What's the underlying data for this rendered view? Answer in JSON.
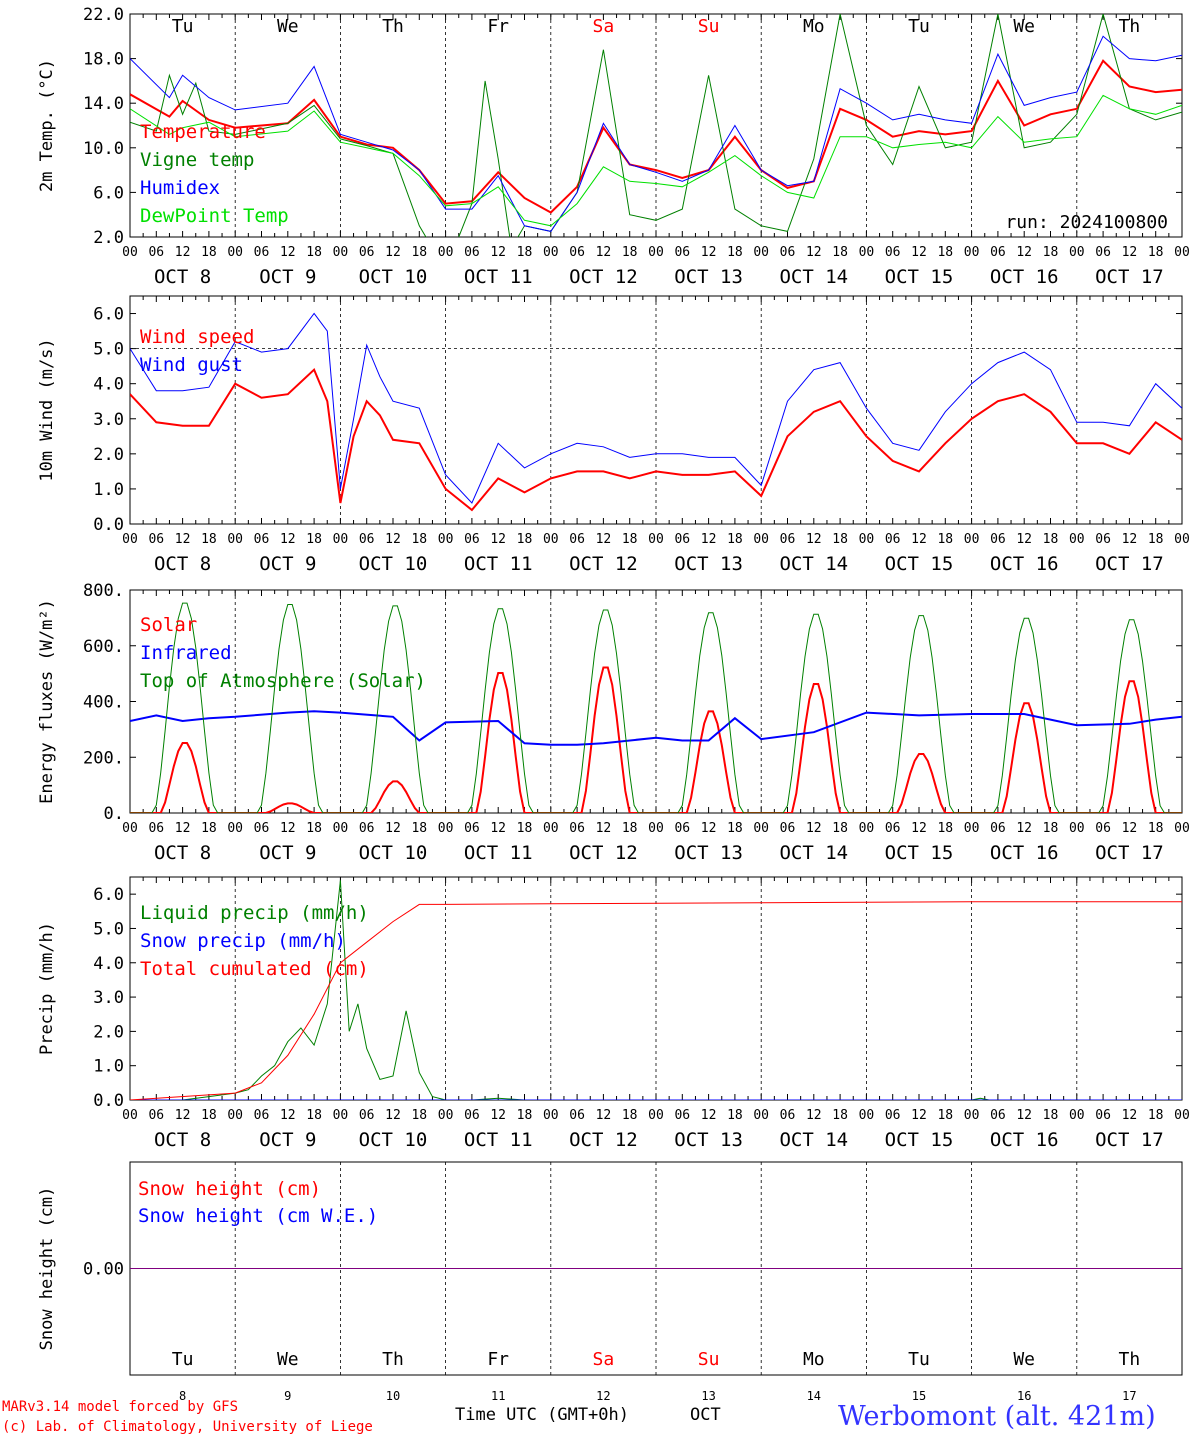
{
  "colors": {
    "red": "#ff0000",
    "green": "#008000",
    "blue": "#0000ff",
    "light_green": "#00e000",
    "black": "#000000",
    "purple": "#800080",
    "title_blue": "#3333ff"
  },
  "days": {
    "weekday": [
      "Tu",
      "We",
      "Th",
      "Fr",
      "Sa",
      "Su",
      "Mo",
      "Tu",
      "We",
      "Th"
    ],
    "weekend_flags": [
      false,
      false,
      false,
      false,
      true,
      true,
      false,
      false,
      false,
      false
    ],
    "date_labels": [
      "OCT  8",
      "OCT  9",
      "OCT 10",
      "OCT 11",
      "OCT 12",
      "OCT 13",
      "OCT 14",
      "OCT 15",
      "OCT 16",
      "OCT 17"
    ],
    "day_numbers": [
      "8",
      "9",
      "10",
      "11",
      "12",
      "13",
      "14",
      "15",
      "16",
      "17"
    ],
    "hour_ticks": [
      "00",
      "06",
      "12",
      "18"
    ],
    "final_tick": "00"
  },
  "footer": {
    "model_line": "MARv3.14 model forced by GFS",
    "lab_line": "(c) Lab. of Climatology, University of Liege",
    "xlabel": "Time UTC (GMT+0h)",
    "month": "OCT",
    "station": "Werbomont (alt. 421m)"
  },
  "chart_data": [
    {
      "type": "line",
      "ylabel": "2m Temp. (°C)",
      "ylim": [
        2.0,
        22.0
      ],
      "yticks": [
        "2.0",
        "6.0",
        "10.0",
        "14.0",
        "18.0",
        "22.0"
      ],
      "show_weekdays": true,
      "annotation": "run: 2024100800",
      "x_unit": "hours since Oct 8 00 UTC",
      "series": [
        {
          "name": "Temperature",
          "color": "red",
          "width": 2,
          "x": [
            0,
            9,
            12,
            18,
            24,
            36,
            42,
            48,
            54,
            60,
            66,
            72,
            78,
            84,
            90,
            96,
            102,
            108,
            114,
            120,
            126,
            132,
            138,
            144,
            150,
            156,
            162,
            168,
            174,
            180,
            186,
            192,
            198,
            204,
            210,
            216,
            222,
            228,
            234,
            240
          ],
          "y": [
            14.8,
            12.8,
            14.2,
            12.5,
            11.8,
            12.2,
            14.3,
            11.0,
            10.3,
            10.0,
            8.0,
            5.0,
            5.2,
            7.8,
            5.5,
            4.2,
            6.5,
            11.8,
            8.5,
            8.0,
            7.3,
            8.0,
            11.0,
            8.0,
            6.4,
            7.0,
            13.5,
            12.5,
            11.0,
            11.5,
            11.2,
            11.5,
            16.0,
            12.0,
            13.0,
            13.5,
            17.8,
            15.5,
            15.0,
            15.2
          ]
        },
        {
          "name": "Vigne temp",
          "color": "green",
          "width": 1,
          "x": [
            0,
            6,
            9,
            12,
            15,
            18,
            24,
            36,
            42,
            48,
            54,
            60,
            66,
            72,
            78,
            81,
            84,
            87,
            90,
            96,
            102,
            108,
            114,
            120,
            126,
            132,
            138,
            144,
            150,
            156,
            162,
            168,
            174,
            180,
            186,
            192,
            198,
            204,
            210,
            216,
            222,
            228,
            234,
            240
          ],
          "y": [
            12.3,
            11.5,
            16.5,
            13.0,
            15.8,
            11.5,
            11.2,
            12.2,
            13.8,
            10.8,
            10.2,
            9.5,
            3.0,
            -1.0,
            5.0,
            16.0,
            9.0,
            1.0,
            3.0,
            2.5,
            6.0,
            18.8,
            4.0,
            3.5,
            4.5,
            16.5,
            4.5,
            3.0,
            2.5,
            9.0,
            22.0,
            12.0,
            8.5,
            15.5,
            10.0,
            10.5,
            22.0,
            10.0,
            10.5,
            13.0,
            22.0,
            13.5,
            12.5,
            13.2
          ]
        },
        {
          "name": "Humidex",
          "color": "blue",
          "width": 1,
          "x": [
            0,
            9,
            12,
            18,
            24,
            36,
            42,
            48,
            54,
            60,
            66,
            72,
            78,
            84,
            90,
            96,
            102,
            108,
            114,
            120,
            126,
            132,
            138,
            144,
            150,
            156,
            162,
            168,
            174,
            180,
            186,
            192,
            198,
            204,
            210,
            216,
            222,
            228,
            234,
            240
          ],
          "y": [
            18.0,
            14.5,
            16.5,
            14.5,
            13.4,
            14.0,
            17.3,
            11.2,
            10.5,
            9.8,
            8.0,
            4.5,
            4.5,
            7.5,
            3.0,
            2.5,
            6.0,
            12.2,
            8.5,
            7.8,
            7.0,
            8.0,
            12.0,
            8.0,
            6.6,
            7.0,
            15.3,
            14.0,
            12.5,
            13.0,
            12.5,
            12.2,
            18.4,
            13.8,
            14.5,
            15.0,
            20.0,
            18.0,
            17.8,
            18.3
          ]
        },
        {
          "name": "DewPoint Temp",
          "color": "light_green",
          "width": 1,
          "x": [
            0,
            9,
            12,
            18,
            24,
            36,
            42,
            48,
            54,
            60,
            66,
            72,
            78,
            84,
            90,
            96,
            102,
            108,
            114,
            120,
            126,
            132,
            138,
            144,
            150,
            156,
            162,
            168,
            174,
            180,
            186,
            192,
            198,
            204,
            210,
            216,
            222,
            228,
            234,
            240
          ],
          "y": [
            13.5,
            11.2,
            11.8,
            12.3,
            11.0,
            11.5,
            13.3,
            10.5,
            10.0,
            9.5,
            7.5,
            4.8,
            5.0,
            6.5,
            3.5,
            3.0,
            5.0,
            8.3,
            7.0,
            6.8,
            6.5,
            7.8,
            9.3,
            7.5,
            6.0,
            5.5,
            11.0,
            11.0,
            10.0,
            10.3,
            10.5,
            10.0,
            12.8,
            10.5,
            10.8,
            11.0,
            14.7,
            13.5,
            13.0,
            13.8
          ]
        }
      ]
    },
    {
      "type": "line",
      "ylabel": "10m Wind (m/s)",
      "ylim": [
        0.0,
        6.5
      ],
      "yticks": [
        "0.0",
        "1.0",
        "2.0",
        "3.0",
        "4.0",
        "5.0",
        "6.0"
      ],
      "reference_line": 5.0,
      "show_weekdays": false,
      "x_unit": "hours since Oct 8 00 UTC",
      "series": [
        {
          "name": "Wind speed",
          "color": "red",
          "width": 2,
          "x": [
            0,
            6,
            12,
            18,
            24,
            30,
            36,
            42,
            45,
            48,
            51,
            54,
            57,
            60,
            66,
            72,
            78,
            84,
            90,
            96,
            102,
            108,
            114,
            120,
            126,
            132,
            138,
            144,
            150,
            156,
            162,
            168,
            174,
            180,
            186,
            192,
            198,
            204,
            210,
            216,
            222,
            228,
            234,
            240
          ],
          "y": [
            3.7,
            2.9,
            2.8,
            2.8,
            4.0,
            3.6,
            3.7,
            4.4,
            3.5,
            0.6,
            2.5,
            3.5,
            3.1,
            2.4,
            2.3,
            1.0,
            0.4,
            1.3,
            0.9,
            1.3,
            1.5,
            1.5,
            1.3,
            1.5,
            1.4,
            1.4,
            1.5,
            0.8,
            2.5,
            3.2,
            3.5,
            2.5,
            1.8,
            1.5,
            2.3,
            3.0,
            3.5,
            3.7,
            3.2,
            2.3,
            2.3,
            2.0,
            2.9,
            2.4
          ]
        },
        {
          "name": "Wind gust",
          "color": "blue",
          "width": 1,
          "x": [
            0,
            6,
            12,
            18,
            24,
            30,
            36,
            42,
            45,
            48,
            51,
            54,
            57,
            60,
            66,
            72,
            78,
            84,
            90,
            96,
            102,
            108,
            114,
            120,
            126,
            132,
            138,
            144,
            150,
            156,
            162,
            168,
            174,
            180,
            186,
            192,
            198,
            204,
            210,
            216,
            222,
            228,
            234,
            240
          ],
          "y": [
            5.0,
            3.8,
            3.8,
            3.9,
            5.2,
            4.9,
            5.0,
            6.0,
            5.5,
            1.0,
            3.0,
            5.1,
            4.2,
            3.5,
            3.3,
            1.4,
            0.6,
            2.3,
            1.6,
            2.0,
            2.3,
            2.2,
            1.9,
            2.0,
            2.0,
            1.9,
            1.9,
            1.1,
            3.5,
            4.4,
            4.6,
            3.3,
            2.3,
            2.1,
            3.2,
            4.0,
            4.6,
            4.9,
            4.4,
            2.9,
            2.9,
            2.8,
            4.0,
            3.3
          ]
        }
      ]
    },
    {
      "type": "line",
      "ylabel": "Energy fluxes (W/m²)",
      "ylim": [
        0,
        800
      ],
      "yticks": [
        "0.",
        "200.",
        "400.",
        "600.",
        "800."
      ],
      "show_weekdays": false,
      "x_unit": "hours since Oct 8 00 UTC",
      "series": [
        {
          "name": "Solar",
          "color": "red",
          "width": 2,
          "daily_peaks": [
            255,
            35,
            115,
            510,
            530,
            370,
            470,
            215,
            400,
            480
          ]
        },
        {
          "name": "Infrared",
          "color": "blue",
          "width": 2,
          "x": [
            0,
            6,
            12,
            18,
            24,
            36,
            42,
            48,
            60,
            66,
            72,
            84,
            90,
            96,
            102,
            108,
            120,
            126,
            132,
            138,
            144,
            156,
            168,
            180,
            192,
            204,
            216,
            228,
            234,
            240
          ],
          "y": [
            330,
            350,
            330,
            340,
            345,
            360,
            365,
            360,
            345,
            260,
            325,
            330,
            250,
            245,
            245,
            250,
            270,
            260,
            260,
            340,
            265,
            290,
            360,
            350,
            355,
            355,
            315,
            320,
            335,
            345
          ]
        },
        {
          "name": "Top of Atmosphere (Solar)",
          "color": "green",
          "width": 1,
          "daily_peaks": [
            760,
            755,
            750,
            740,
            735,
            725,
            720,
            715,
            705,
            700
          ]
        }
      ]
    },
    {
      "type": "line",
      "ylabel": "Precip (mm/h)",
      "ylim": [
        0.0,
        6.5
      ],
      "yticks": [
        "0.0",
        "1.0",
        "2.0",
        "3.0",
        "4.0",
        "5.0",
        "6.0"
      ],
      "show_weekdays": false,
      "x_unit": "hours since Oct 8 00 UTC",
      "series": [
        {
          "name": "Liquid precip (mm/h)",
          "color": "green",
          "width": 1,
          "x": [
            0,
            12,
            18,
            24,
            27,
            30,
            33,
            36,
            39,
            42,
            45,
            48,
            50,
            52,
            54,
            57,
            60,
            63,
            66,
            69,
            72,
            78,
            84,
            90,
            96,
            120,
            168,
            192,
            194,
            196,
            240
          ],
          "y": [
            0.0,
            0.0,
            0.1,
            0.2,
            0.3,
            0.7,
            1.0,
            1.7,
            2.1,
            1.6,
            2.8,
            6.4,
            2.0,
            2.8,
            1.5,
            0.6,
            0.7,
            2.6,
            0.8,
            0.1,
            0.0,
            0.0,
            0.05,
            0.0,
            0.0,
            0.0,
            0.0,
            0.0,
            0.05,
            0.0,
            0.0
          ]
        },
        {
          "name": "Snow precip (mm/h)",
          "color": "blue",
          "width": 1,
          "x": [
            0,
            240
          ],
          "y": [
            0.0,
            0.0
          ]
        },
        {
          "name": "Total cumulated (cm)",
          "color": "red",
          "width": 1,
          "x": [
            0,
            24,
            30,
            36,
            42,
            48,
            54,
            60,
            66,
            72,
            96,
            144,
            192,
            240
          ],
          "y": [
            0.0,
            0.2,
            0.5,
            1.3,
            2.5,
            4.0,
            4.6,
            5.2,
            5.7,
            5.7,
            5.72,
            5.75,
            5.78,
            5.78
          ]
        }
      ]
    },
    {
      "type": "line",
      "ylabel": "Snow height (cm)",
      "ylim": [
        -1.0,
        1.0
      ],
      "yticks": [
        "0.00"
      ],
      "show_weekdays": true,
      "x_unit": "hours since Oct 8 00 UTC",
      "series": [
        {
          "name": "Snow height (cm)",
          "color": "red",
          "width": 1,
          "x": [
            0,
            240
          ],
          "y": [
            0.0,
            0.0
          ]
        },
        {
          "name": "Snow height (cm W.E.)",
          "color": "blue",
          "width": 1,
          "x": [
            0,
            240
          ],
          "y": [
            0.0,
            0.0
          ]
        }
      ]
    }
  ]
}
